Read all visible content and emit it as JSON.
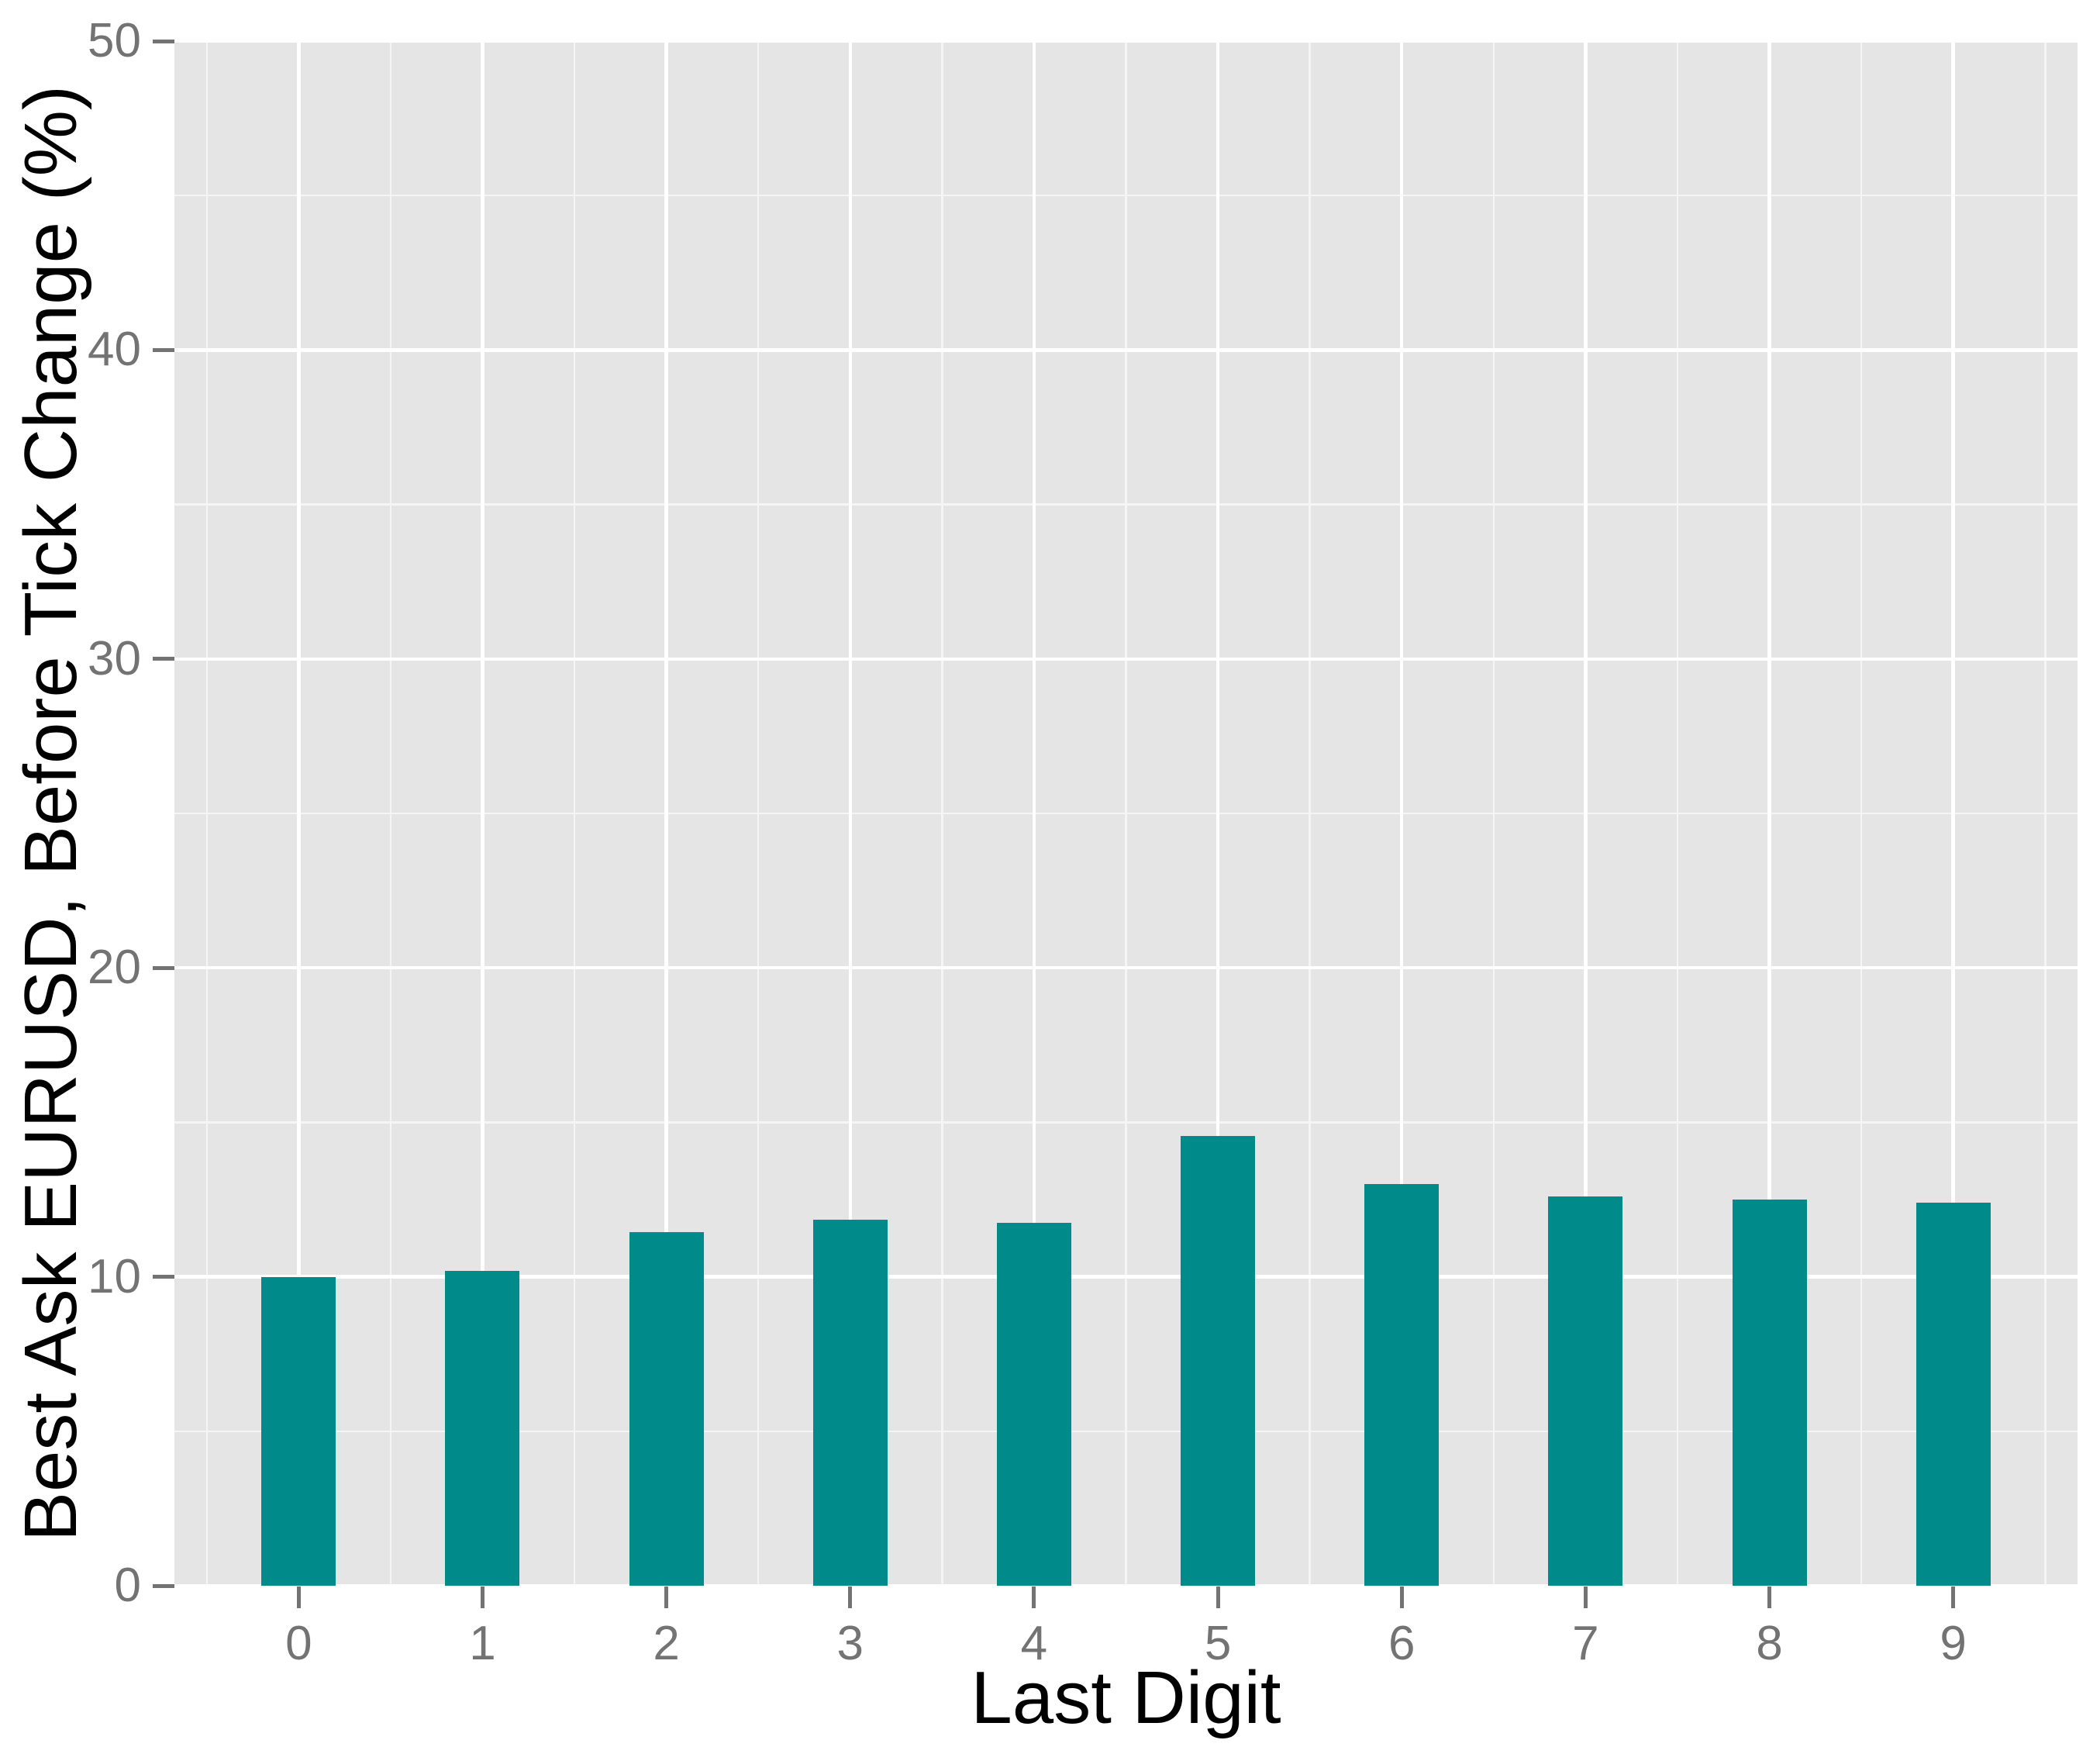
{
  "chart_data": {
    "type": "bar",
    "title": "",
    "xlabel": "Last Digit",
    "ylabel": "Best Ask EURUSD, Before Tick Change (%)",
    "categories": [
      "0",
      "1",
      "2",
      "3",
      "4",
      "5",
      "6",
      "7",
      "8",
      "9"
    ],
    "values": [
      10.0,
      10.2,
      11.45,
      11.85,
      11.75,
      14.55,
      13.0,
      12.6,
      12.5,
      12.4
    ],
    "ylim": [
      0,
      50
    ],
    "yticks": [
      0,
      10,
      20,
      30,
      40,
      50
    ],
    "minor_ytick_values": [
      5,
      15,
      25,
      35,
      45
    ],
    "grid": "major-and-minor",
    "legend_position": "none",
    "colors": {
      "bar_fill": "#008B8B",
      "panel_background": "#E5E5E5",
      "major_gridline": "#FFFFFF",
      "minor_gridline": "#F5F5F5",
      "tick_text": "#737373",
      "tick_mark": "#737373",
      "axis_title_text": "#000000",
      "figure_background": "#FFFFFF"
    }
  }
}
